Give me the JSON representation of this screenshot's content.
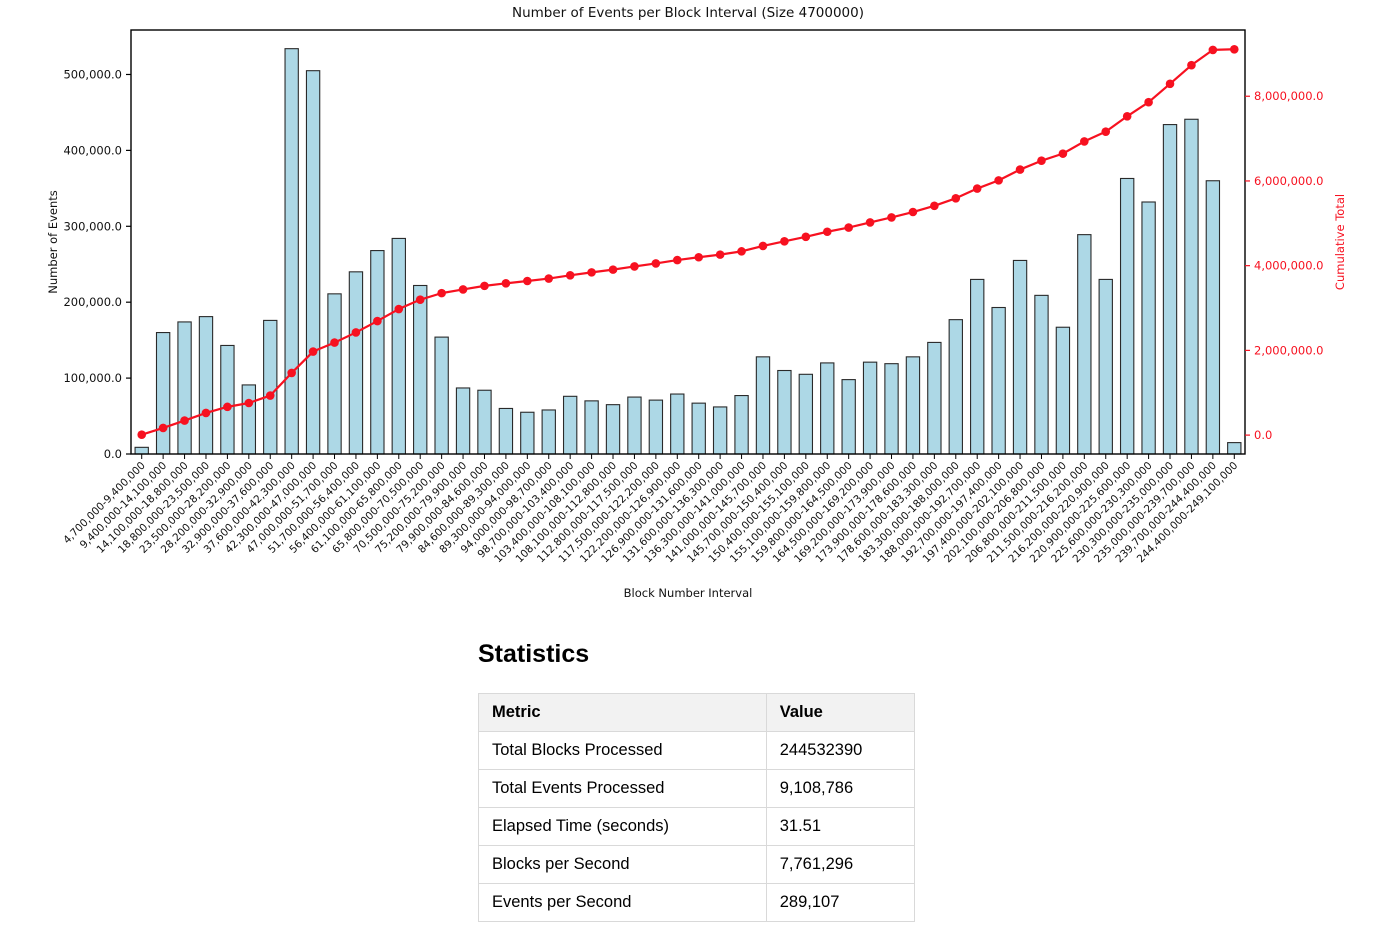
{
  "chart_data": {
    "type": "bar",
    "title": "Number of Events per Block Interval (Size 4700000)",
    "xlabel": "Block Number Interval",
    "ylabel_left": "Number of Events",
    "ylabel_right": "Cumulative Total",
    "grid": false,
    "legend": "none",
    "categories": [
      "4,700,000-9,400,000",
      "9,400,000-14,100,000",
      "14,100,000-18,800,000",
      "18,800,000-23,500,000",
      "23,500,000-28,200,000",
      "28,200,000-32,900,000",
      "32,900,000-37,600,000",
      "37,600,000-42,300,000",
      "42,300,000-47,000,000",
      "47,000,000-51,700,000",
      "51,700,000-56,400,000",
      "56,400,000-61,100,000",
      "61,100,000-65,800,000",
      "65,800,000-70,500,000",
      "70,500,000-75,200,000",
      "75,200,000-79,900,000",
      "79,900,000-84,600,000",
      "84,600,000-89,300,000",
      "89,300,000-94,000,000",
      "94,000,000-98,700,000",
      "98,700,000-103,400,000",
      "103,400,000-108,100,000",
      "108,100,000-112,800,000",
      "112,800,000-117,500,000",
      "117,500,000-122,200,000",
      "122,200,000-126,900,000",
      "126,900,000-131,600,000",
      "131,600,000-136,300,000",
      "136,300,000-141,000,000",
      "141,000,000-145,700,000",
      "145,700,000-150,400,000",
      "150,400,000-155,100,000",
      "155,100,000-159,800,000",
      "159,800,000-164,500,000",
      "164,500,000-169,200,000",
      "169,200,000-173,900,000",
      "173,900,000-178,600,000",
      "178,600,000-183,300,000",
      "183,300,000-188,000,000",
      "188,000,000-192,700,000",
      "192,700,000-197,400,000",
      "197,400,000-202,100,000",
      "202,100,000-206,800,000",
      "206,800,000-211,500,000",
      "211,500,000-216,200,000",
      "216,200,000-220,900,000",
      "220,900,000-225,600,000",
      "225,600,000-230,300,000",
      "230,300,000-235,000,000",
      "235,000,000-239,700,000",
      "239,700,000-244,400,000",
      "244,400,000-249,100,000"
    ],
    "series": [
      {
        "name": "Number of Events",
        "type": "bar",
        "color": "#add8e6",
        "edge_color": "#2a2a2a",
        "values": [
          8786,
          160000,
          174000,
          181000,
          143000,
          91000,
          176000,
          534000,
          505000,
          211000,
          240000,
          268000,
          284000,
          222000,
          154000,
          87000,
          84000,
          60000,
          55000,
          58000,
          76000,
          70000,
          65000,
          75000,
          71000,
          79000,
          67000,
          62000,
          77000,
          128000,
          110000,
          105000,
          120000,
          98000,
          121000,
          119000,
          128000,
          147000,
          177000,
          230000,
          193000,
          255000,
          209000,
          167000,
          289000,
          230000,
          363000,
          332000,
          434000,
          441000,
          360000,
          15000
        ]
      },
      {
        "name": "Cumulative Total",
        "type": "line",
        "color": "#f71120",
        "marker": "circle",
        "values": [
          8786,
          168786,
          342786,
          523786,
          666786,
          757786,
          933786,
          1467786,
          1972786,
          2183786,
          2423786,
          2691786,
          2975786,
          3197786,
          3351786,
          3438786,
          3522786,
          3582786,
          3637786,
          3695786,
          3771786,
          3841786,
          3906786,
          3981786,
          4052786,
          4131786,
          4198786,
          4260786,
          4337786,
          4465786,
          4575786,
          4680786,
          4800786,
          4898786,
          5019786,
          5138786,
          5266786,
          5413786,
          5590786,
          5820786,
          6013786,
          6268786,
          6477786,
          6644786,
          6933786,
          7163786,
          7526786,
          7858786,
          8292786,
          8733786,
          9093786,
          9108786
        ]
      }
    ],
    "ylim_left": [
      0,
      558600
    ],
    "ylim_right": [
      -446200,
      9563800
    ],
    "yticks_left": {
      "values": [
        0,
        100000,
        200000,
        300000,
        400000,
        500000
      ],
      "labels": [
        "0.0",
        "100,000.0",
        "200,000.0",
        "300,000.0",
        "400,000.0",
        "500,000.0"
      ]
    },
    "yticks_right": {
      "values": [
        0,
        2000000,
        4000000,
        6000000,
        8000000
      ],
      "labels": [
        "0.0",
        "2,000,000.0",
        "4,000,000.0",
        "6,000,000.0",
        "8,000,000.0"
      ]
    }
  },
  "statistics": {
    "heading": "Statistics",
    "columns": [
      "Metric",
      "Value"
    ],
    "rows": [
      {
        "metric": "Total Blocks Processed",
        "value": "244532390"
      },
      {
        "metric": "Total Events Processed",
        "value": "9,108,786"
      },
      {
        "metric": "Elapsed Time (seconds)",
        "value": "31.51"
      },
      {
        "metric": "Blocks per Second",
        "value": "7,761,296"
      },
      {
        "metric": "Events per Second",
        "value": "289,107"
      }
    ]
  }
}
